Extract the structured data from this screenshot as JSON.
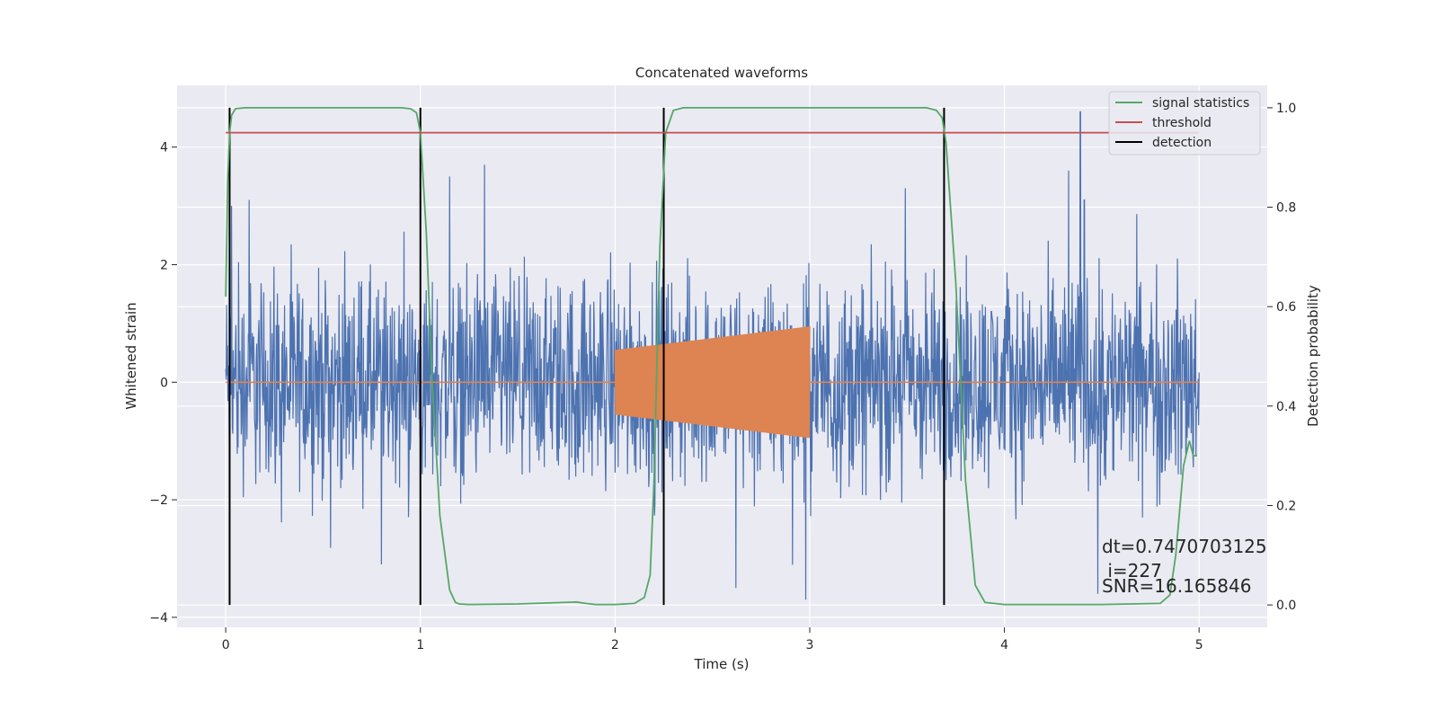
{
  "chart_data": {
    "type": "line",
    "title": "Concatenated waveforms",
    "xlabel": "Time (s)",
    "ylabel_left": "Whitened strain",
    "ylabel_right": "Detection probability",
    "xlim": [
      -0.25,
      5.35
    ],
    "ylim_left": [
      -4.17,
      5.05
    ],
    "ylim_right": [
      -0.045,
      1.045
    ],
    "x_ticks": [
      0,
      1,
      2,
      3,
      4,
      5
    ],
    "y_ticks_left": [
      -4,
      -2,
      0,
      2,
      4
    ],
    "y_ticks_right": [
      0.0,
      0.2,
      0.4,
      0.6,
      0.8,
      1.0
    ],
    "x_tick_labels": [
      "0",
      "1",
      "2",
      "3",
      "4",
      "5"
    ],
    "y_tick_labels_left": [
      "−4",
      "−2",
      "0",
      "2",
      "4"
    ],
    "y_tick_labels_right": [
      "0.0",
      "0.2",
      "0.4",
      "0.6",
      "0.8",
      "1.0"
    ],
    "grid": true,
    "legend_position": "top-right",
    "colors": {
      "background": "#eaeaf2",
      "grid": "#ffffff",
      "strain": "#4c72b0",
      "injection": "#dd8452",
      "statistics": "#55a868",
      "threshold": "#c44e52",
      "detection": "#000000"
    },
    "series": [
      {
        "name": "signal statistics",
        "axis": "right",
        "x": [
          0.0,
          0.01,
          0.02,
          0.03,
          0.05,
          0.1,
          0.5,
          0.9,
          0.95,
          0.98,
          1.0,
          1.03,
          1.06,
          1.1,
          1.15,
          1.18,
          1.2,
          1.25,
          1.5,
          1.8,
          1.85,
          1.9,
          2.0,
          2.1,
          2.15,
          2.18,
          2.2,
          2.23,
          2.26,
          2.3,
          2.35,
          2.4,
          3.0,
          3.6,
          3.65,
          3.68,
          3.7,
          3.75,
          3.8,
          3.85,
          3.9,
          4.0,
          4.5,
          4.8,
          4.85,
          4.88,
          4.92,
          4.95,
          4.97,
          4.99
        ],
        "y": [
          0.62,
          0.85,
          0.95,
          0.985,
          0.998,
          1.0,
          1.0,
          1.0,
          0.998,
          0.99,
          0.95,
          0.75,
          0.45,
          0.18,
          0.03,
          0.005,
          0.002,
          0.001,
          0.002,
          0.006,
          0.003,
          0.001,
          0.001,
          0.003,
          0.015,
          0.06,
          0.25,
          0.72,
          0.95,
          0.995,
          1.0,
          1.0,
          1.0,
          1.0,
          0.995,
          0.98,
          0.93,
          0.65,
          0.25,
          0.04,
          0.005,
          0.001,
          0.001,
          0.003,
          0.02,
          0.1,
          0.28,
          0.33,
          0.3,
          0.3
        ]
      },
      {
        "name": "threshold",
        "axis": "right",
        "x": [
          0.0,
          5.0
        ],
        "y": [
          0.95,
          0.95
        ]
      }
    ],
    "detections": [
      0.02,
      1.0,
      2.25,
      3.69
    ],
    "legend": [
      {
        "label": "signal statistics",
        "key": "statistics"
      },
      {
        "label": "threshold",
        "key": "threshold"
      },
      {
        "label": "detection",
        "key": "detection"
      }
    ],
    "strain": {
      "x_range": [
        0.0,
        5.0
      ],
      "typical_range": [
        -2.2,
        2.3
      ],
      "spikes": [
        {
          "x": 4.39,
          "y": 4.6
        },
        {
          "x": 4.33,
          "y": 3.6
        },
        {
          "x": 1.33,
          "y": 3.7
        },
        {
          "x": 1.15,
          "y": 3.5
        },
        {
          "x": 3.49,
          "y": 3.3
        },
        {
          "x": 0.03,
          "y": 3.0
        },
        {
          "x": 0.12,
          "y": 3.1
        },
        {
          "x": 2.98,
          "y": -3.7
        },
        {
          "x": 2.62,
          "y": -3.5
        },
        {
          "x": 4.48,
          "y": -3.6
        },
        {
          "x": 0.8,
          "y": -3.1
        },
        {
          "x": 4.41,
          "y": 3.1
        }
      ]
    },
    "injection": {
      "start": 2.0,
      "end": 3.0,
      "amplitude_start": 0.55,
      "amplitude_end": 0.95,
      "baseline": 0.0
    },
    "annotations": [
      "dt=0.7470703125",
      " i=227",
      "SNR=16.165846"
    ]
  }
}
